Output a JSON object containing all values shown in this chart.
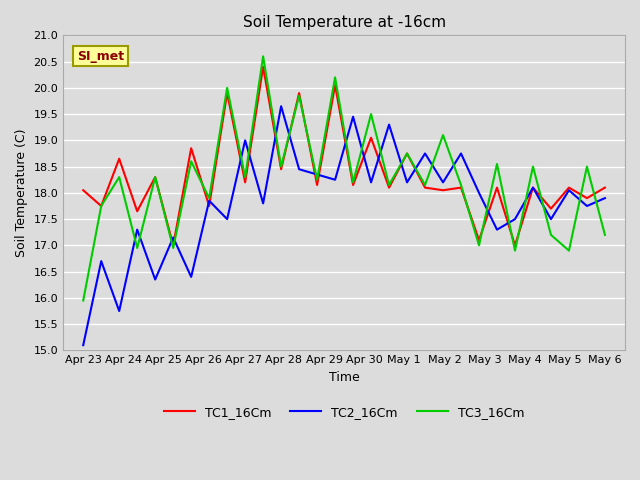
{
  "title": "Soil Temperature at -16cm",
  "xlabel": "Time",
  "ylabel": "Soil Temperature (C)",
  "ylim": [
    15.0,
    21.0
  ],
  "yticks": [
    15.0,
    15.5,
    16.0,
    16.5,
    17.0,
    17.5,
    18.0,
    18.5,
    19.0,
    19.5,
    20.0,
    20.5,
    21.0
  ],
  "xtick_labels": [
    "Apr 23",
    "Apr 24",
    "Apr 25",
    "Apr 26",
    "Apr 27",
    "Apr 28",
    "Apr 29",
    "Apr 30",
    "May 1",
    "May 2",
    "May 3",
    "May 4",
    "May 5",
    "May 6"
  ],
  "background_color": "#dcdcdc",
  "plot_bg_color": "#dcdcdc",
  "grid_color": "#ffffff",
  "annotation_text": "SI_met",
  "annotation_color": "#8b0000",
  "annotation_bg": "#ffff99",
  "annotation_edge": "#999900",
  "TC1_color": "#ff0000",
  "TC2_color": "#0000ff",
  "TC3_color": "#00cc00",
  "TC1_label": "TC1_16Cm",
  "TC2_label": "TC2_16Cm",
  "TC3_label": "TC3_16Cm",
  "TC1_data": [
    18.05,
    17.75,
    18.65,
    17.65,
    18.3,
    17.0,
    18.85,
    17.75,
    19.9,
    18.2,
    20.4,
    18.45,
    19.9,
    18.15,
    20.05,
    18.15,
    19.05,
    18.1,
    18.75,
    18.1,
    18.05,
    18.1,
    17.1,
    18.1,
    17.0,
    18.1,
    17.7,
    18.1,
    17.9,
    18.1
  ],
  "TC2_data": [
    15.1,
    16.7,
    15.75,
    17.3,
    16.35,
    17.15,
    16.4,
    17.85,
    17.5,
    19.0,
    17.8,
    19.65,
    18.45,
    18.35,
    18.25,
    19.45,
    18.2,
    19.3,
    18.2,
    18.75,
    18.2,
    18.75,
    18.0,
    17.3,
    17.5,
    18.1,
    17.5,
    18.05,
    17.75,
    17.9
  ],
  "TC3_data": [
    15.95,
    17.75,
    18.3,
    16.95,
    18.3,
    16.95,
    18.6,
    17.9,
    20.0,
    18.3,
    20.6,
    18.5,
    19.85,
    18.25,
    20.2,
    18.2,
    19.5,
    18.15,
    18.75,
    18.15,
    19.1,
    18.15,
    17.0,
    18.55,
    16.9,
    18.5,
    17.2,
    16.9,
    18.5,
    17.2
  ],
  "linewidth": 1.5,
  "title_fontsize": 11,
  "axis_fontsize": 9,
  "tick_fontsize": 8
}
